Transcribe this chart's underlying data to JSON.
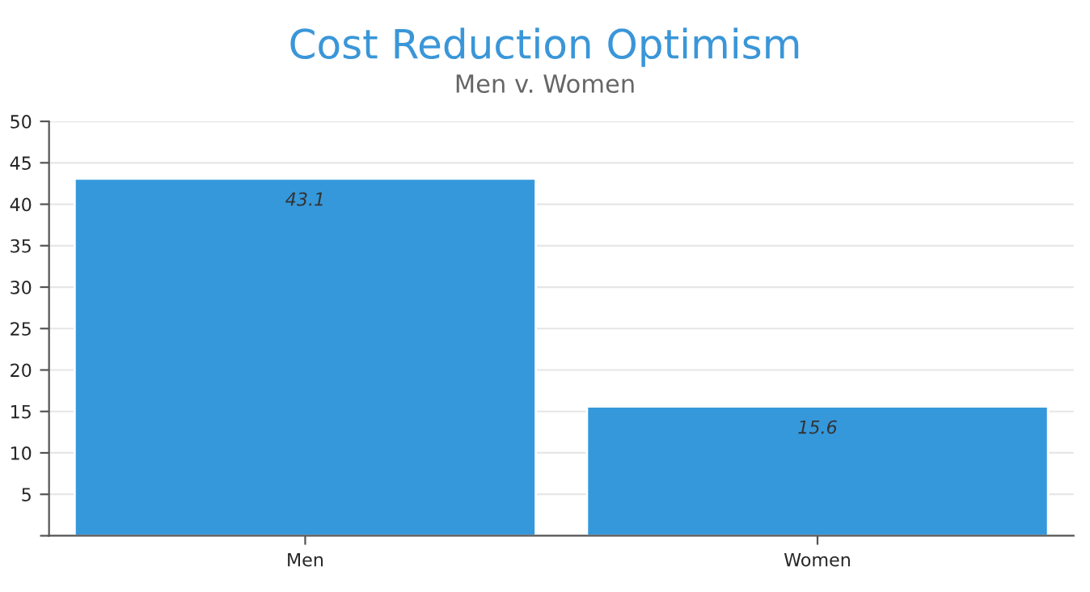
{
  "chart_data": {
    "type": "bar",
    "title": "Cost Reduction Optimism",
    "subtitle": "Men v. Women",
    "categories": [
      "Men",
      "Women"
    ],
    "series": [
      {
        "color": "#3598db",
        "values": [
          43.1,
          15.6
        ]
      }
    ],
    "ylim": [
      0,
      50
    ],
    "yticks": [
      {
        "value": 0,
        "label": null
      },
      5,
      10,
      15,
      20,
      25,
      30,
      35,
      40,
      45,
      50
    ],
    "grid": "y",
    "data_labels": true,
    "legend": false
  }
}
